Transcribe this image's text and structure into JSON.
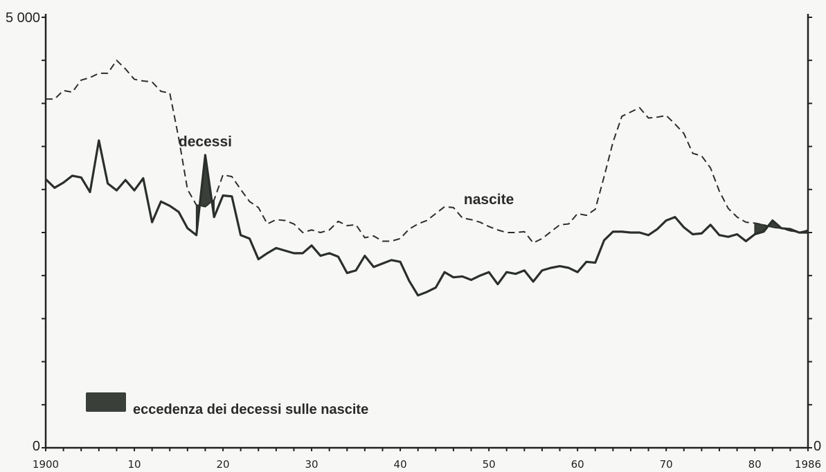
{
  "chart_data": {
    "type": "line",
    "title": "",
    "xlabel": "",
    "ylabel": "",
    "xlim": [
      1900,
      1986
    ],
    "ylim": [
      0,
      5000
    ],
    "y_tick_labels": [
      "5 000",
      "0"
    ],
    "y_tick_labels_right": [
      "0"
    ],
    "x_tick_labels": [
      "1900",
      "10",
      "20",
      "30",
      "40",
      "50",
      "60",
      "70",
      "80",
      "1986"
    ],
    "x_tick_values": [
      1900,
      1910,
      1920,
      1930,
      1940,
      1950,
      1960,
      1970,
      1980,
      1986
    ],
    "annotations": [
      {
        "text": "decessi",
        "x": 1918,
        "y": 3500
      },
      {
        "text": "nascite",
        "x": 1950,
        "y": 2830
      }
    ],
    "legend": {
      "label": "eccedenza dei decessi sulle nascite",
      "placement": "bottom-left",
      "color": "#3a3f3a"
    },
    "series": [
      {
        "name": "nascite",
        "style": "dashed",
        "x": [
          1900,
          1901,
          1902,
          1903,
          1904,
          1905,
          1906,
          1907,
          1908,
          1909,
          1910,
          1911,
          1912,
          1913,
          1914,
          1915,
          1916,
          1917,
          1918,
          1919,
          1920,
          1921,
          1922,
          1923,
          1924,
          1925,
          1926,
          1927,
          1928,
          1929,
          1930,
          1931,
          1932,
          1933,
          1934,
          1935,
          1936,
          1937,
          1938,
          1939,
          1940,
          1941,
          1942,
          1943,
          1944,
          1945,
          1946,
          1947,
          1948,
          1949,
          1950,
          1951,
          1952,
          1953,
          1954,
          1955,
          1956,
          1957,
          1958,
          1959,
          1960,
          1961,
          1962,
          1963,
          1964,
          1965,
          1966,
          1967,
          1968,
          1969,
          1970,
          1971,
          1972,
          1973,
          1974,
          1975,
          1976,
          1977,
          1978,
          1979,
          1980,
          1981,
          1982,
          1983,
          1984,
          1985,
          1986
        ],
        "values": [
          4050,
          4050,
          4150,
          4130,
          4270,
          4300,
          4350,
          4350,
          4500,
          4400,
          4280,
          4260,
          4250,
          4140,
          4120,
          3600,
          3000,
          2820,
          2800,
          2880,
          3170,
          3150,
          3000,
          2860,
          2790,
          2600,
          2650,
          2640,
          2600,
          2500,
          2530,
          2500,
          2530,
          2630,
          2580,
          2590,
          2440,
          2460,
          2400,
          2400,
          2430,
          2540,
          2600,
          2640,
          2720,
          2800,
          2790,
          2670,
          2650,
          2620,
          2570,
          2530,
          2500,
          2500,
          2510,
          2380,
          2430,
          2510,
          2590,
          2600,
          2720,
          2700,
          2770,
          3150,
          3550,
          3850,
          3900,
          3950,
          3830,
          3840,
          3860,
          3760,
          3650,
          3420,
          3390,
          3250,
          2980,
          2780,
          2680,
          2620,
          2610,
          2590,
          2560,
          2550,
          2520,
          2500,
          2530
        ]
      },
      {
        "name": "decessi",
        "style": "solid",
        "x": [
          1900,
          1901,
          1902,
          1903,
          1904,
          1905,
          1906,
          1907,
          1908,
          1909,
          1910,
          1911,
          1912,
          1913,
          1914,
          1915,
          1916,
          1917,
          1918,
          1919,
          1920,
          1921,
          1922,
          1923,
          1924,
          1925,
          1926,
          1927,
          1928,
          1929,
          1930,
          1931,
          1932,
          1933,
          1934,
          1935,
          1936,
          1937,
          1938,
          1939,
          1940,
          1941,
          1942,
          1943,
          1944,
          1945,
          1946,
          1947,
          1948,
          1949,
          1950,
          1951,
          1952,
          1953,
          1954,
          1955,
          1956,
          1957,
          1958,
          1959,
          1960,
          1961,
          1962,
          1963,
          1964,
          1965,
          1966,
          1967,
          1968,
          1969,
          1970,
          1971,
          1972,
          1973,
          1974,
          1975,
          1976,
          1977,
          1978,
          1979,
          1980,
          1981,
          1982,
          1983,
          1984,
          1985,
          1986
        ],
        "values": [
          3120,
          3020,
          3080,
          3160,
          3140,
          2970,
          3570,
          3070,
          2990,
          3110,
          2990,
          3130,
          2620,
          2860,
          2810,
          2740,
          2550,
          2470,
          3400,
          2680,
          2930,
          2920,
          2470,
          2430,
          2190,
          2260,
          2320,
          2290,
          2260,
          2260,
          2350,
          2230,
          2260,
          2220,
          2030,
          2060,
          2230,
          2100,
          2140,
          2180,
          2160,
          1940,
          1770,
          1810,
          1860,
          2040,
          1980,
          1990,
          1950,
          2000,
          2040,
          1900,
          2040,
          2020,
          2060,
          1930,
          2060,
          2090,
          2110,
          2090,
          2040,
          2160,
          2150,
          2410,
          2510,
          2510,
          2500,
          2500,
          2470,
          2540,
          2640,
          2680,
          2560,
          2480,
          2490,
          2590,
          2470,
          2450,
          2480,
          2400,
          2480,
          2510,
          2640,
          2550,
          2540,
          2500,
          2500
        ]
      }
    ],
    "excess_deaths_periods": [
      {
        "x_start": 1917,
        "x_end": 1919
      },
      {
        "x_start": 1980,
        "x_end": 1986
      }
    ]
  }
}
